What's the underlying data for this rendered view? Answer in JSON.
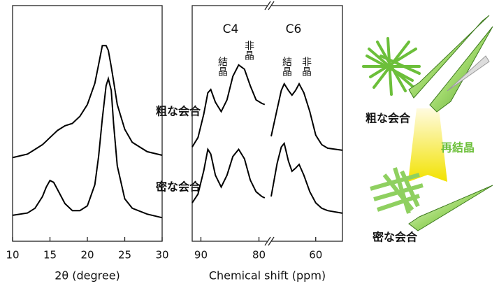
{
  "chart_data": [
    {
      "type": "line",
      "xlabel": "2θ (degree)",
      "xlim": [
        10,
        30
      ],
      "xticks": [
        10,
        15,
        20,
        25,
        30
      ],
      "ylim": [
        0,
        100
      ],
      "x": [
        10,
        12,
        13,
        14,
        14.5,
        15,
        15.5,
        16,
        17,
        18,
        19,
        20,
        21,
        21.5,
        22,
        22.5,
        22.8,
        23.2,
        23.5,
        24,
        25,
        26,
        28,
        30
      ],
      "series": [
        {
          "name": "粗な会合",
          "color": "#000000",
          "values": [
            35.5,
            37,
            39,
            41,
            42.5,
            44,
            45.5,
            47,
            49,
            50,
            53,
            58,
            67,
            75,
            83,
            83,
            81,
            74,
            68,
            58,
            47.5,
            42,
            38,
            36.5
          ]
        },
        {
          "name": "密な会合",
          "color": "#000000",
          "values": [
            11,
            12,
            14,
            19,
            23,
            25.8,
            25,
            22,
            16,
            13,
            13,
            15,
            24,
            36,
            52,
            66,
            69,
            64,
            50,
            32,
            18,
            14,
            11.5,
            10
          ]
        }
      ]
    },
    {
      "type": "line",
      "xlabel": "Chemical shift (ppm)",
      "xlim": [
        91.5,
        55.5
      ],
      "xbreak": [
        78.5,
        67.5
      ],
      "xticks": [
        90,
        80,
        60
      ],
      "ylim": [
        0,
        100
      ],
      "x": [
        91.5,
        90.5,
        89.5,
        88.8,
        88.3,
        87.5,
        86.5,
        85.5,
        84.5,
        83.5,
        82.5,
        81.5,
        80.5,
        79.5,
        79,
        73,
        67.5,
        66.5,
        65.8,
        65.3,
        64.6,
        64,
        63.4,
        62.8,
        62,
        61,
        60,
        59,
        58,
        55.5
      ],
      "series": [
        {
          "color": "#000000",
          "values": [
            40,
            44,
            54,
            63,
            64.4,
            59,
            55,
            60,
            70,
            74.8,
            73,
            66,
            60,
            58.5,
            58,
            null,
            44.5,
            56,
            64,
            66.8,
            64,
            62,
            64,
            66.8,
            63,
            55,
            45,
            41,
            39.5,
            38.6
          ]
        },
        {
          "color": "#000000",
          "values": [
            16.3,
            20,
            30,
            39,
            37,
            28,
            23,
            28,
            36,
            39,
            35,
            26,
            21,
            19,
            18.4,
            null,
            19,
            33,
            40,
            41.5,
            34,
            29.7,
            31,
            32.6,
            28,
            21,
            16.3,
            14,
            13,
            11.9
          ]
        }
      ]
    }
  ],
  "annotations": [
    "C4",
    "C6",
    "結晶",
    "非晶",
    "結晶",
    "非晶"
  ],
  "illustration": {
    "top_label": "粗な会合",
    "arrow_label": "再結晶",
    "bottom_label": "密な会合"
  }
}
